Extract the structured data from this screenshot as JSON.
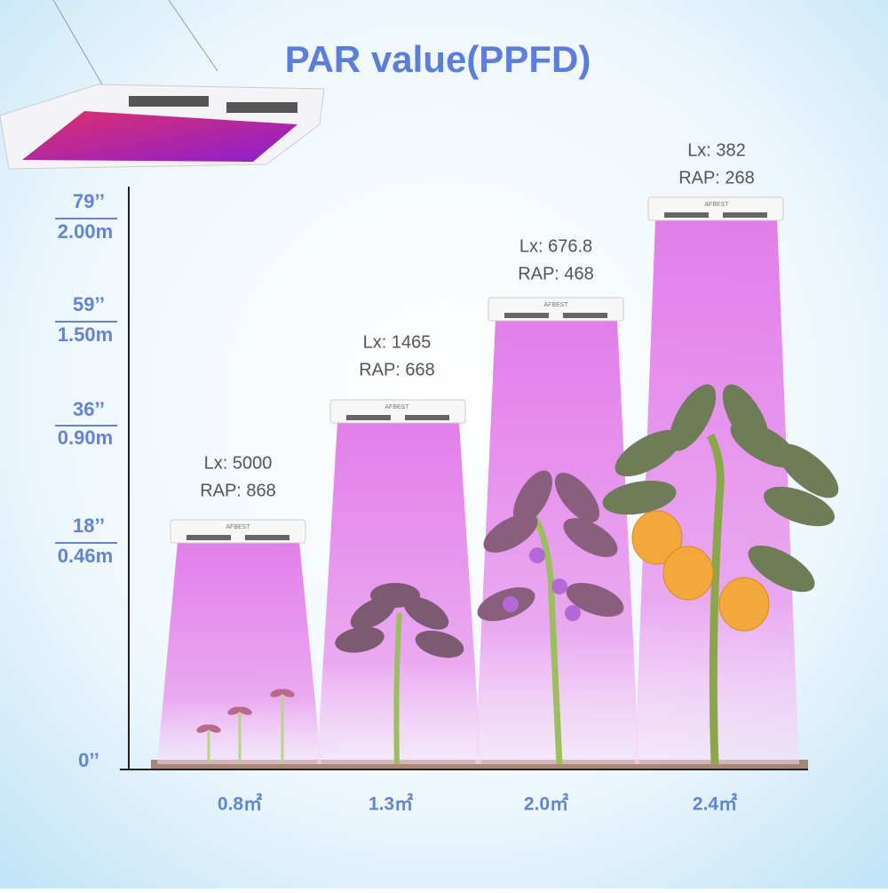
{
  "title": "PAR value(PPFD)",
  "height_axis": [
    {
      "inches": "79’’",
      "meters": "2.00m"
    },
    {
      "inches": "59’’",
      "meters": "1.50m"
    },
    {
      "inches": "36’’",
      "meters": "0.90m"
    },
    {
      "inches": "18’’",
      "meters": "0.46m"
    },
    {
      "inches": "0’’"
    }
  ],
  "lamps": [
    {
      "brand": "AFBEST",
      "lx": "Lx: 5000",
      "rap": "RAP: 868",
      "area": "0.8㎡"
    },
    {
      "brand": "AFBEST",
      "lx": "Lx: 1465",
      "rap": "RAP: 668",
      "area": "1.3㎡"
    },
    {
      "brand": "AFBEST",
      "lx": "Lx: 676.8",
      "rap": "RAP: 468",
      "area": "2.0㎡"
    },
    {
      "brand": "AFBEST",
      "lx": "Lx: 382",
      "rap": "RAP: 268",
      "area": "2.4㎡"
    }
  ]
}
